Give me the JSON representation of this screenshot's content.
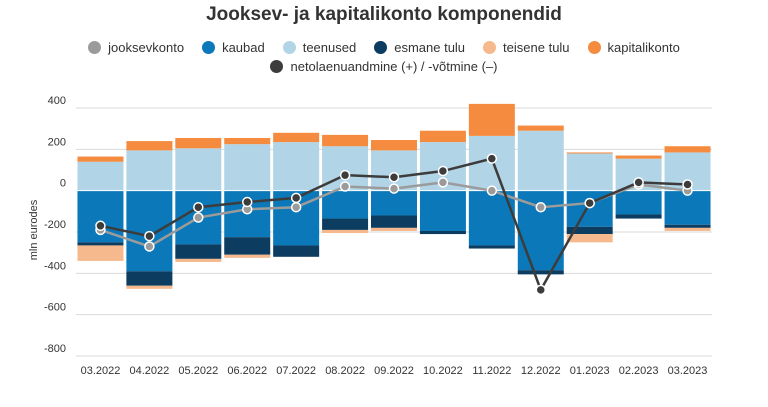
{
  "chart_data": {
    "type": "bar",
    "title": "Jooksev- ja kapitalikonto komponendid",
    "ylabel": "mln eurodes",
    "xlabel": "",
    "ylim": [
      -800,
      400
    ],
    "yticks": [
      400,
      200,
      0,
      -200,
      -400,
      -600,
      -800
    ],
    "categories": [
      "03.2022",
      "04.2022",
      "05.2022",
      "06.2022",
      "07.2022",
      "08.2022",
      "09.2022",
      "10.2022",
      "11.2022",
      "12.2022",
      "01.2023",
      "02.2023",
      "03.2023"
    ],
    "bar_series": [
      {
        "key": "kaubad",
        "name": "kaubad",
        "color": "#0a78b9",
        "values": [
          -250,
          -390,
          -260,
          -225,
          -265,
          -135,
          -120,
          -195,
          -265,
          -385,
          -175,
          -115,
          -165
        ]
      },
      {
        "key": "teenused",
        "name": "teenused",
        "color": "#b1d4e7",
        "values": [
          140,
          195,
          205,
          225,
          235,
          215,
          195,
          235,
          265,
          290,
          180,
          155,
          185
        ]
      },
      {
        "key": "esmane",
        "name": "esmane tulu",
        "color": "#0c3c60",
        "values": [
          -15,
          -70,
          -70,
          -85,
          -55,
          -55,
          -60,
          -15,
          -15,
          -20,
          -35,
          -20,
          -15
        ]
      },
      {
        "key": "teisene",
        "name": "teisene tulu",
        "color": "#f6b98d",
        "values": [
          -75,
          -15,
          -15,
          -15,
          0,
          -15,
          -15,
          0,
          0,
          0,
          -40,
          0,
          -15
        ]
      },
      {
        "key": "kapital",
        "name": "kapitalikonto",
        "color": "#f58b3e",
        "values": [
          25,
          45,
          50,
          30,
          45,
          55,
          50,
          55,
          155,
          25,
          5,
          15,
          30
        ]
      }
    ],
    "line_series": [
      {
        "key": "jooksev",
        "name": "jooksevkonto",
        "color": "#9b9b9b",
        "values": [
          -190,
          -270,
          -130,
          -90,
          -80,
          20,
          10,
          40,
          0,
          -80,
          -60,
          30,
          0
        ]
      },
      {
        "key": "neto",
        "name": "netolaenuandmine (+) / -võtmine (–)",
        "color": "#3c3c3c",
        "values": [
          -170,
          -220,
          -80,
          -55,
          -35,
          75,
          65,
          95,
          155,
          -480,
          -60,
          40,
          30
        ]
      }
    ],
    "legend_position": "top",
    "grid": true,
    "grid_axis": "y"
  },
  "legend": {
    "row1": [
      "jooksev",
      "kaubad",
      "teenused",
      "esmane",
      "teisene",
      "kapital"
    ],
    "row2": [
      "neto"
    ]
  }
}
